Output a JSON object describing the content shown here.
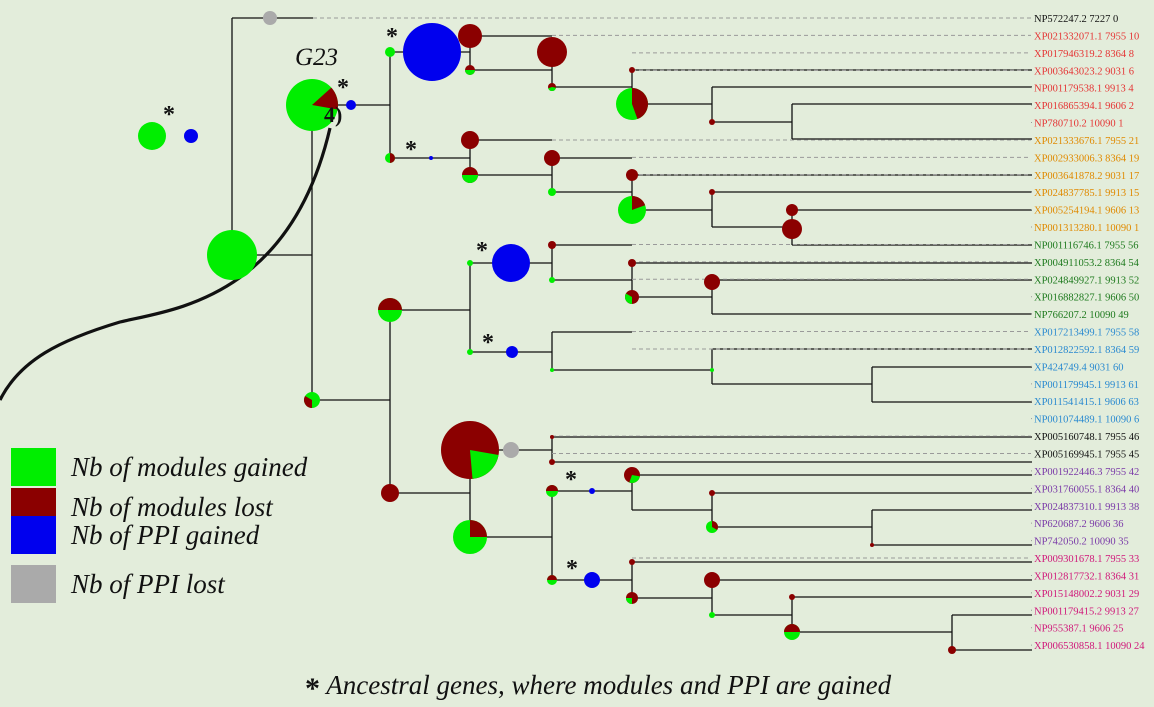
{
  "colors": {
    "modules_gained": "#00ee00",
    "modules_lost": "#8b0000",
    "ppi_gained": "#0000ee",
    "ppi_lost": "#aaaaaa",
    "background": "#e3eddb"
  },
  "annotations": {
    "node_label": "G23",
    "callout": "4)",
    "star": "*"
  },
  "legend": [
    {
      "key": "modules_gained",
      "label": "Nb of modules gained"
    },
    {
      "key": "modules_lost",
      "label": "Nb of modules lost"
    },
    {
      "key": "ppi_gained",
      "label": "Nb of PPI gained"
    },
    {
      "key": "ppi_lost",
      "label": "Nb of PPI lost"
    }
  ],
  "footnote": {
    "star": "*",
    "text": "Ancestral genes, where modules and PPI are gained"
  },
  "leaves": [
    {
      "label": "NP572247.2 7227 0",
      "color": "#111111"
    },
    {
      "label": "XP021332071.1 7955 10",
      "color": "#e53535"
    },
    {
      "label": "XP017946319.2 8364 8",
      "color": "#e53535"
    },
    {
      "label": "XP003643023.2 9031 6",
      "color": "#e53535"
    },
    {
      "label": "NP001179538.1 9913 4",
      "color": "#e53535"
    },
    {
      "label": "XP016865394.1 9606 2",
      "color": "#e53535"
    },
    {
      "label": "NP780710.2 10090 1",
      "color": "#e53535"
    },
    {
      "label": "XP021333676.1 7955 21",
      "color": "#e08a00"
    },
    {
      "label": "XP002933006.3 8364 19",
      "color": "#e08a00"
    },
    {
      "label": "XP003641878.2 9031 17",
      "color": "#e08a00"
    },
    {
      "label": "XP024837785.1 9913 15",
      "color": "#e08a00"
    },
    {
      "label": "XP005254194.1 9606 13",
      "color": "#e08a00"
    },
    {
      "label": "NP001313280.1 10090 1",
      "color": "#e08a00"
    },
    {
      "label": "NP001116746.1 7955 56",
      "color": "#1e7a1e"
    },
    {
      "label": "XP004911053.2 8364 54",
      "color": "#1e7a1e"
    },
    {
      "label": "XP024849927.1 9913 52",
      "color": "#1e7a1e"
    },
    {
      "label": "XP016882827.1 9606 50",
      "color": "#1e7a1e"
    },
    {
      "label": "NP766207.2 10090 49",
      "color": "#1e7a1e"
    },
    {
      "label": "XP017213499.1 7955 58",
      "color": "#2a8ad0"
    },
    {
      "label": "XP012822592.1 8364 59",
      "color": "#2a8ad0"
    },
    {
      "label": "XP424749.4 9031 60",
      "color": "#2a8ad0"
    },
    {
      "label": "NP001179945.1 9913 61",
      "color": "#2a8ad0"
    },
    {
      "label": "XP011541415.1 9606 63",
      "color": "#2a8ad0"
    },
    {
      "label": "NP001074489.1 10090 6",
      "color": "#2a8ad0"
    },
    {
      "label": "XP005160748.1 7955 46",
      "color": "#111111"
    },
    {
      "label": "XP005169945.1 7955 45",
      "color": "#111111"
    },
    {
      "label": "XP001922446.3 7955 42",
      "color": "#7a3aa8"
    },
    {
      "label": "XP031760055.1 8364 40",
      "color": "#7a3aa8"
    },
    {
      "label": "XP024837310.1 9913 38",
      "color": "#7a3aa8"
    },
    {
      "label": "NP620687.2 9606 36",
      "color": "#7a3aa8"
    },
    {
      "label": "NP742050.2 10090 35",
      "color": "#7a3aa8"
    },
    {
      "label": "XP009301678.1 7955 33",
      "color": "#d0187a"
    },
    {
      "label": "XP012817732.1 8364 31",
      "color": "#d0187a"
    },
    {
      "label": "XP015148002.2 9031 29",
      "color": "#d0187a"
    },
    {
      "label": "NP001179415.2 9913 27",
      "color": "#d0187a"
    },
    {
      "label": "NP955387.1 9606 25",
      "color": "#d0187a"
    },
    {
      "label": "XP006530858.1 10090 24",
      "color": "#d0187a"
    }
  ]
}
